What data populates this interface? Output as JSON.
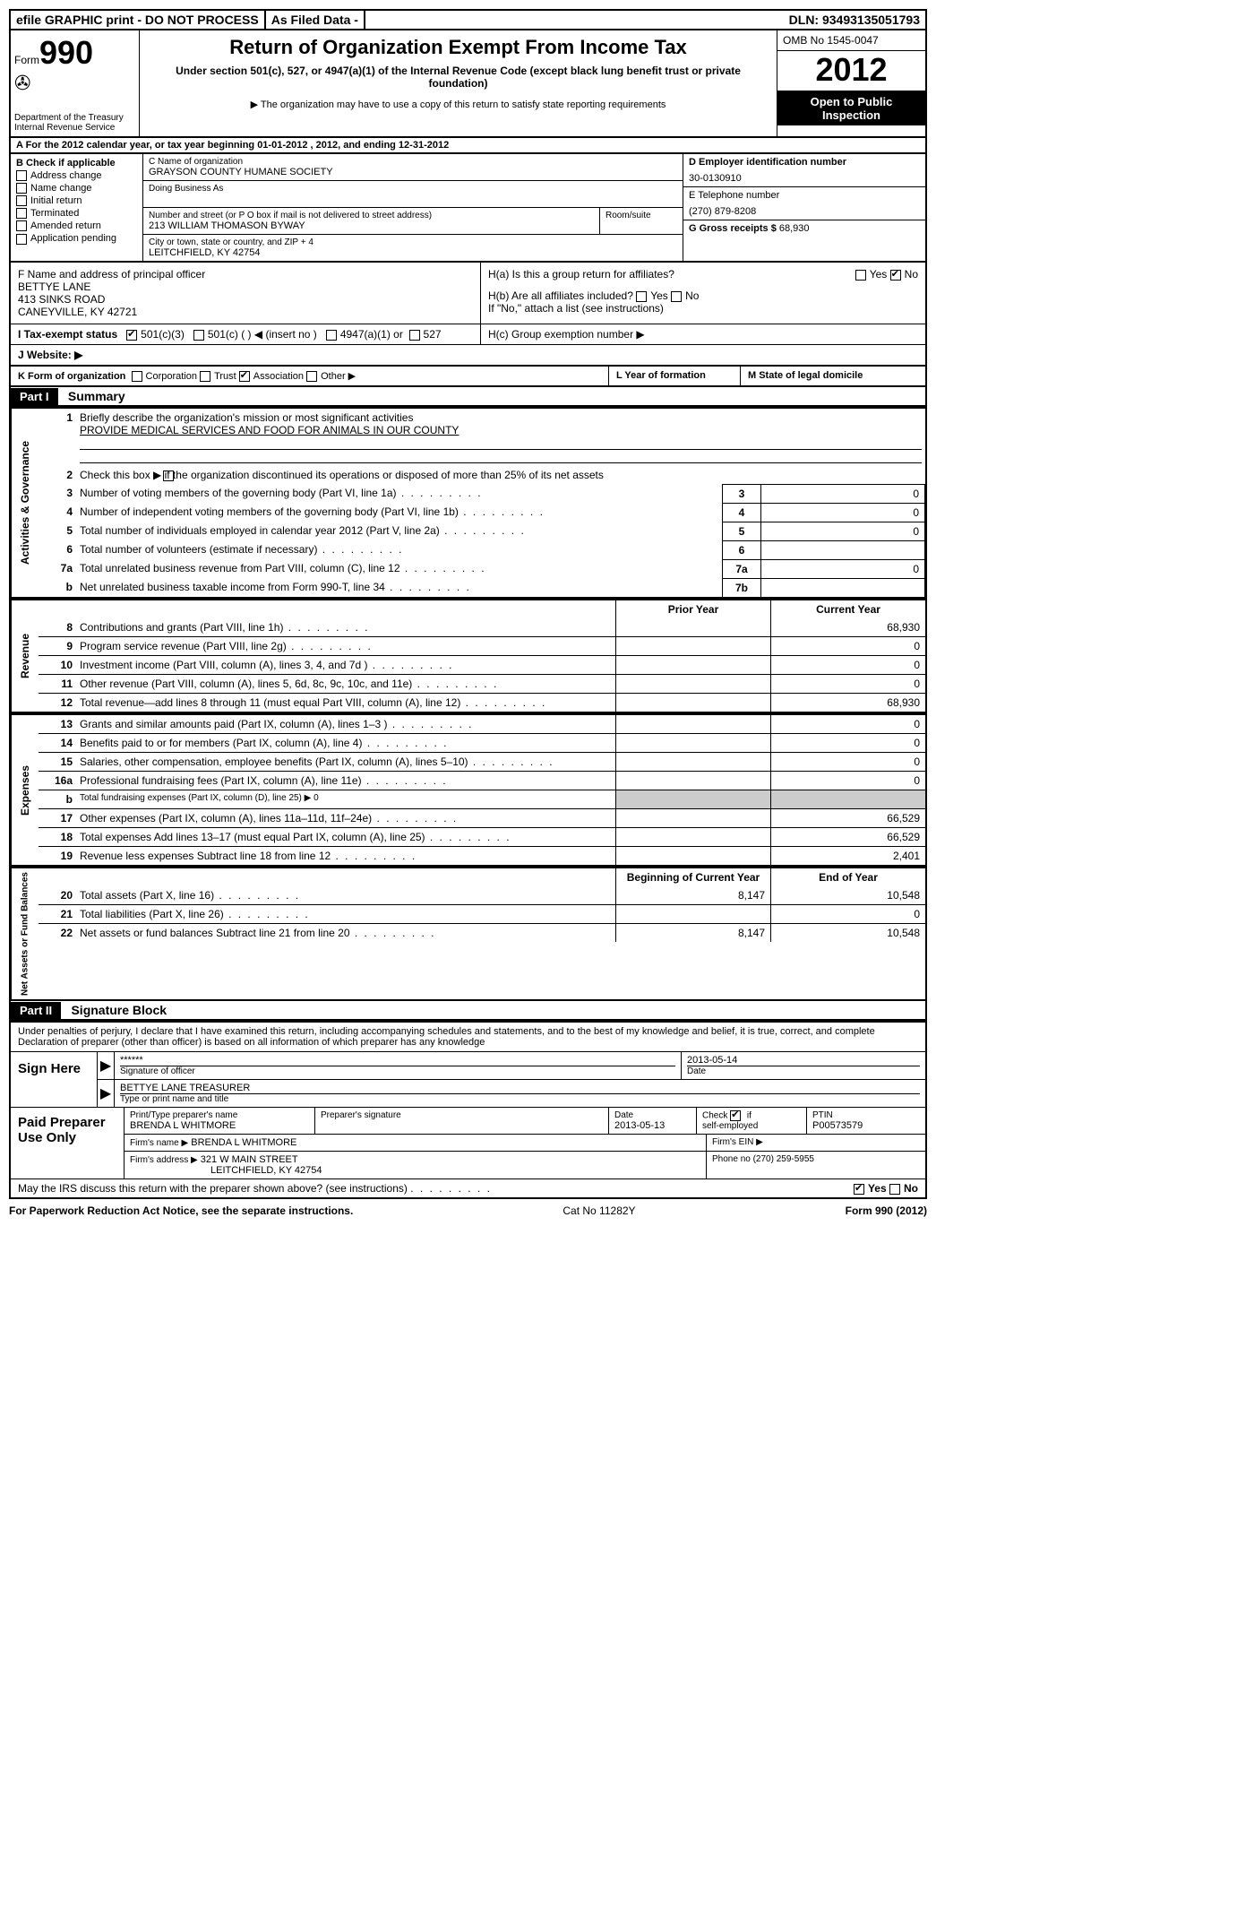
{
  "topbar": {
    "efile": "efile GRAPHIC print - DO NOT PROCESS",
    "asfiled": "As Filed Data -",
    "dln_label": "DLN:",
    "dln": "93493135051793"
  },
  "header": {
    "form_label": "Form",
    "form_no": "990",
    "dept1": "Department of the Treasury",
    "dept2": "Internal Revenue Service",
    "title": "Return of Organization Exempt From Income Tax",
    "subtitle": "Under section 501(c), 527, or 4947(a)(1) of the Internal Revenue Code (except black lung benefit trust or private foundation)",
    "note": "The organization may have to use a copy of this return to satisfy state reporting requirements",
    "omb": "OMB No 1545-0047",
    "year": "2012",
    "public1": "Open to Public",
    "public2": "Inspection"
  },
  "rowA": "A  For the 2012 calendar year, or tax year beginning 01-01-2012    , 2012, and ending 12-31-2012",
  "boxB": {
    "label": "B  Check if applicable",
    "opts": [
      "Address change",
      "Name change",
      "Initial return",
      "Terminated",
      "Amended return",
      "Application pending"
    ]
  },
  "boxC": {
    "label": "C Name of organization",
    "name": "GRAYSON COUNTY HUMANE SOCIETY",
    "dba_label": "Doing Business As",
    "addr_label": "Number and street (or P O  box if mail is not delivered to street address)",
    "room_label": "Room/suite",
    "addr": "213 WILLIAM THOMASON BYWAY",
    "city_label": "City or town, state or country, and ZIP + 4",
    "city": "LEITCHFIELD, KY  42754"
  },
  "boxD": {
    "label": "D Employer identification number",
    "value": "30-0130910"
  },
  "boxE": {
    "label": "E Telephone number",
    "value": "(270) 879-8208"
  },
  "boxG": {
    "label": "G Gross receipts $",
    "value": "68,930"
  },
  "boxF": {
    "label": "F  Name and address of principal officer",
    "name": "BETTYE LANE",
    "addr1": "413 SINKS ROAD",
    "addr2": "CANEYVILLE, KY  42721"
  },
  "boxH": {
    "a": "H(a)  Is this a group return for affiliates?",
    "b": "H(b)  Are all affiliates included?",
    "b_note": "If \"No,\" attach a list  (see instructions)",
    "c": "H(c)   Group exemption number ▶",
    "yes": "Yes",
    "no": "No"
  },
  "rowI": {
    "label": "I   Tax-exempt status",
    "o1": "501(c)(3)",
    "o2": "501(c) (   ) ◀ (insert no )",
    "o3": "4947(a)(1) or",
    "o4": "527"
  },
  "rowJ": "J   Website: ▶",
  "rowK": {
    "label": "K Form of organization",
    "opts": [
      "Corporation",
      "Trust",
      "Association",
      "Other ▶"
    ],
    "l": "L Year of formation",
    "m": "M State of legal domicile"
  },
  "part1": {
    "hdr": "Part I",
    "title": "Summary"
  },
  "sideLabels": {
    "ag": "Activities & Governance",
    "rev": "Revenue",
    "exp": "Expenses",
    "na": "Net Assets or Fund Balances"
  },
  "s1": {
    "l1": "Briefly describe the organization's mission or most significant activities",
    "mission": "PROVIDE MEDICAL SERVICES AND FOOD FOR ANIMALS IN OUR COUNTY",
    "l2": "Check this box ▶     if the organization discontinued its operations or disposed of more than 25% of its net assets",
    "rows": [
      {
        "n": "3",
        "t": "Number of voting members of the governing body (Part VI, line 1a)",
        "box": "3",
        "v": "0"
      },
      {
        "n": "4",
        "t": "Number of independent voting members of the governing body (Part VI, line 1b)",
        "box": "4",
        "v": "0"
      },
      {
        "n": "5",
        "t": "Total number of individuals employed in calendar year 2012 (Part V, line 2a)",
        "box": "5",
        "v": "0"
      },
      {
        "n": "6",
        "t": "Total number of volunteers (estimate if necessary)",
        "box": "6",
        "v": ""
      },
      {
        "n": "7a",
        "t": "Total unrelated business revenue from Part VIII, column (C), line 12",
        "box": "7a",
        "v": "0"
      },
      {
        "n": "b",
        "t": "Net unrelated business taxable income from Form 990-T, line 34",
        "box": "7b",
        "v": ""
      }
    ]
  },
  "twocol_hdr": {
    "prior": "Prior Year",
    "current": "Current Year",
    "boy": "Beginning of Current Year",
    "eoy": "End of Year"
  },
  "rev": [
    {
      "n": "8",
      "t": "Contributions and grants (Part VIII, line 1h)",
      "p": "",
      "c": "68,930"
    },
    {
      "n": "9",
      "t": "Program service revenue (Part VIII, line 2g)",
      "p": "",
      "c": "0"
    },
    {
      "n": "10",
      "t": "Investment income (Part VIII, column (A), lines 3, 4, and 7d )",
      "p": "",
      "c": "0"
    },
    {
      "n": "11",
      "t": "Other revenue (Part VIII, column (A), lines 5, 6d, 8c, 9c, 10c, and 11e)",
      "p": "",
      "c": "0"
    },
    {
      "n": "12",
      "t": "Total revenue—add lines 8 through 11 (must equal Part VIII, column (A), line 12)",
      "p": "",
      "c": "68,930"
    }
  ],
  "exp": [
    {
      "n": "13",
      "t": "Grants and similar amounts paid (Part IX, column (A), lines 1–3 )",
      "p": "",
      "c": "0"
    },
    {
      "n": "14",
      "t": "Benefits paid to or for members (Part IX, column (A), line 4)",
      "p": "",
      "c": "0"
    },
    {
      "n": "15",
      "t": "Salaries, other compensation, employee benefits (Part IX, column (A), lines 5–10)",
      "p": "",
      "c": "0"
    },
    {
      "n": "16a",
      "t": "Professional fundraising fees (Part IX, column (A), line 11e)",
      "p": "",
      "c": "0"
    },
    {
      "n": "b",
      "t": "Total fundraising expenses (Part IX, column (D), line 25)  ▶ 0",
      "p": "",
      "c": ""
    },
    {
      "n": "17",
      "t": "Other expenses (Part IX, column (A), lines 11a–11d, 11f–24e)",
      "p": "",
      "c": "66,529"
    },
    {
      "n": "18",
      "t": "Total expenses  Add lines 13–17 (must equal Part IX, column (A), line 25)",
      "p": "",
      "c": "66,529"
    },
    {
      "n": "19",
      "t": "Revenue less expenses  Subtract line 18 from line 12",
      "p": "",
      "c": "2,401"
    }
  ],
  "na": [
    {
      "n": "20",
      "t": "Total assets (Part X, line 16)",
      "p": "8,147",
      "c": "10,548"
    },
    {
      "n": "21",
      "t": "Total liabilities (Part X, line 26)",
      "p": "",
      "c": "0"
    },
    {
      "n": "22",
      "t": "Net assets or fund balances  Subtract line 21 from line 20",
      "p": "8,147",
      "c": "10,548"
    }
  ],
  "part2": {
    "hdr": "Part II",
    "title": "Signature Block"
  },
  "sig": {
    "perjury": "Under penalties of perjury, I declare that I have examined this return, including accompanying schedules and statements, and to the best of my knowledge and belief, it is true, correct, and complete  Declaration of preparer (other than officer) is based on all information of which preparer has any knowledge",
    "sign_here": "Sign Here",
    "stars": "******",
    "sig_of_officer": "Signature of officer",
    "date_label": "Date",
    "date": "2013-05-14",
    "name_title": "BETTYE LANE TREASURER",
    "type_or_print": "Type or print name and title"
  },
  "prep": {
    "label": "Paid Preparer Use Only",
    "r1": {
      "a": "Print/Type preparer's name",
      "a_v": "BRENDA L WHITMORE",
      "b": "Preparer's signature",
      "c": "Date",
      "c_v": "2013-05-13",
      "d": "Check        if self-employed",
      "e": "PTIN",
      "e_v": "P00573579"
    },
    "r2": {
      "a": "Firm's name   ▶",
      "a_v": "BRENDA L WHITMORE",
      "b": "Firm's EIN ▶"
    },
    "r3": {
      "a": "Firm's address ▶",
      "a_v": "321 W MAIN STREET",
      "a_v2": "LEITCHFIELD, KY  42754",
      "b": "Phone no  (270) 259-5955"
    },
    "discuss": "May the IRS discuss this return with the preparer shown above? (see instructions)",
    "yes": "Yes",
    "no": "No"
  },
  "footer": {
    "left": "For Paperwork Reduction Act Notice, see the separate instructions.",
    "mid": "Cat No 11282Y",
    "right": "Form 990 (2012)"
  }
}
